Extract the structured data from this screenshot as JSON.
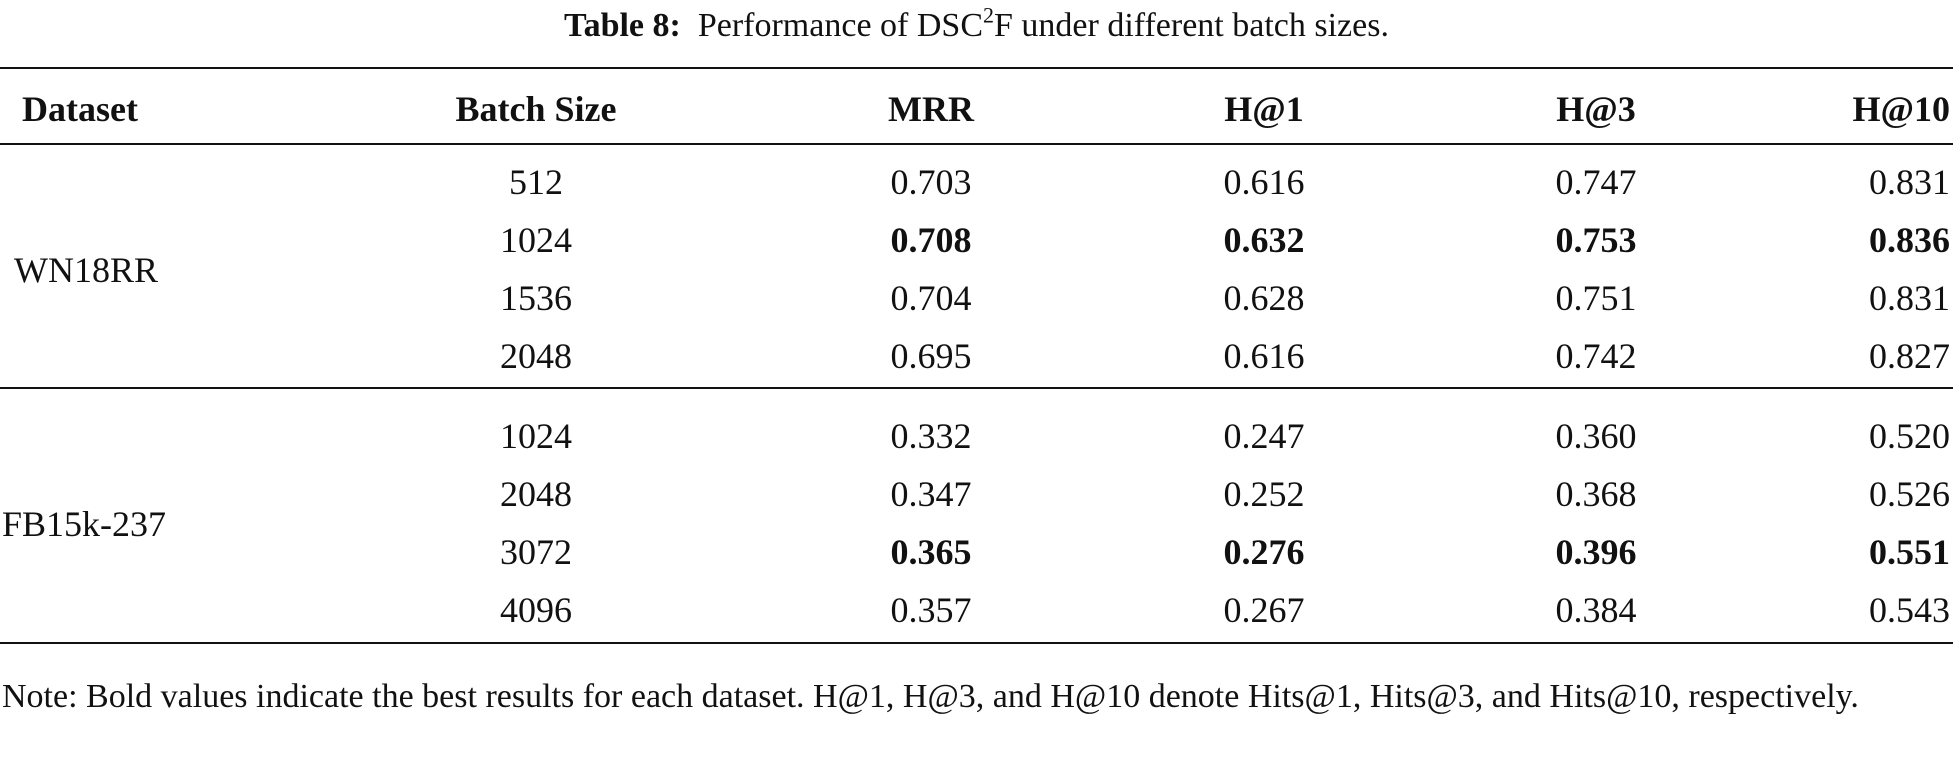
{
  "caption": {
    "label": "Table 8:",
    "text_before": "Performance of DSC",
    "superscript": "2",
    "text_after": "F under different batch sizes."
  },
  "table": {
    "headers": [
      "Dataset",
      "Batch Size",
      "MRR",
      "H@1",
      "H@3",
      "H@10"
    ],
    "groups": [
      {
        "dataset": "WN18RR",
        "rows": [
          {
            "batch": "512",
            "mrr": "0.703",
            "h1": "0.616",
            "h3": "0.747",
            "h10": "0.831"
          },
          {
            "batch": "1024",
            "mrr": "0.708",
            "h1": "0.632",
            "h3": "0.753",
            "h10": "0.836"
          },
          {
            "batch": "1536",
            "mrr": "0.704",
            "h1": "0.628",
            "h3": "0.751",
            "h10": "0.831"
          },
          {
            "batch": "2048",
            "mrr": "0.695",
            "h1": "0.616",
            "h3": "0.742",
            "h10": "0.827"
          }
        ],
        "best_row_index": 1
      },
      {
        "dataset": "FB15k-237",
        "rows": [
          {
            "batch": "1024",
            "mrr": "0.332",
            "h1": "0.247",
            "h3": "0.360",
            "h10": "0.520"
          },
          {
            "batch": "2048",
            "mrr": "0.347",
            "h1": "0.252",
            "h3": "0.368",
            "h10": "0.526"
          },
          {
            "batch": "3072",
            "mrr": "0.365",
            "h1": "0.276",
            "h3": "0.396",
            "h10": "0.551"
          },
          {
            "batch": "4096",
            "mrr": "0.357",
            "h1": "0.267",
            "h3": "0.384",
            "h10": "0.543"
          }
        ],
        "best_row_index": 2
      }
    ]
  },
  "note": "Note: Bold values indicate the best results for each dataset. H@1, H@3, and H@10 denote Hits@1, Hits@3, and Hits@10, respectively."
}
